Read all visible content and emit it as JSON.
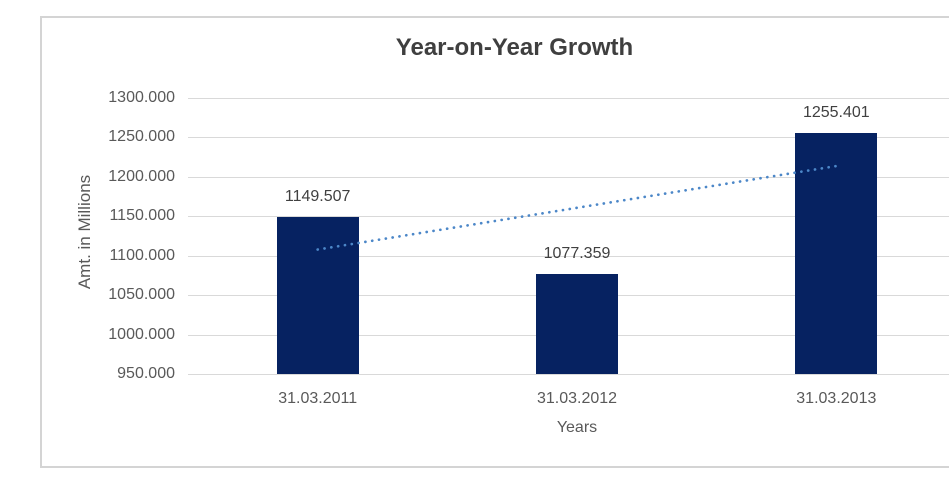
{
  "window": {
    "background_color": "#FFFFFF",
    "border_color": "#D4D4D4"
  },
  "chart_data": {
    "type": "bar",
    "title": "Year-on-Year Growth",
    "xlabel": "Years",
    "ylabel": "Amt. in Millions",
    "categories": [
      "31.03.2011",
      "31.03.2012",
      "31.03.2013"
    ],
    "values": [
      1149.507,
      1077.359,
      1255.401
    ],
    "data_labels": [
      "1149.507",
      "1077.359",
      "1255.401"
    ],
    "ylim": [
      950,
      1300
    ],
    "ytick_step": 50,
    "yticks": [
      "1300.000",
      "1250.000",
      "1200.000",
      "1150.000",
      "1100.000",
      "1050.000",
      "1000.000",
      "950.000"
    ],
    "grid": true,
    "legend": "none",
    "trendline": {
      "type": "linear",
      "style": "dotted",
      "start_value": 1107.8,
      "end_value": 1213.7
    },
    "colors": {
      "bar": "#062261",
      "trendline": "#4C87C8",
      "gridline": "#D9D9D9",
      "axis_text": "#595959",
      "label_text": "#404040",
      "title_text": "#3F3F3F"
    }
  }
}
